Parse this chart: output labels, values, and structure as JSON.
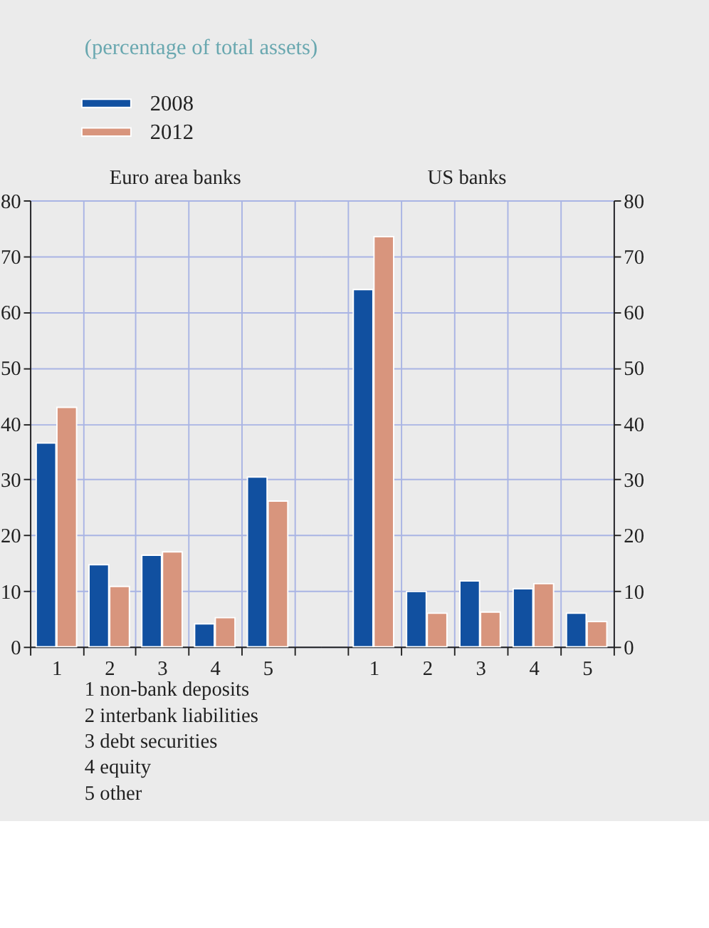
{
  "chart_data": [
    {
      "type": "bar",
      "title": "Euro area banks",
      "subtitle": "(percentage of total assets)",
      "categories": [
        "1",
        "2",
        "3",
        "4",
        "5"
      ],
      "series": [
        {
          "name": "2008",
          "color": "#1150a0",
          "values": [
            36.5,
            14.7,
            16.4,
            4.1,
            30.4
          ]
        },
        {
          "name": "2012",
          "color": "#d8957d",
          "values": [
            42.9,
            10.8,
            17.0,
            5.2,
            26.1
          ]
        }
      ],
      "ylim": [
        0,
        80
      ],
      "yticks": [
        0,
        10,
        20,
        30,
        40,
        50,
        60,
        70,
        80
      ],
      "grid": true,
      "legend": "top left",
      "annotations": [
        "1 non-bank deposits",
        "2 interbank liabilities",
        "3 debt securities",
        "4 equity",
        "5 other"
      ]
    },
    {
      "type": "bar",
      "title": "US banks",
      "categories": [
        "1",
        "2",
        "3",
        "4",
        "5"
      ],
      "series": [
        {
          "name": "2008",
          "color": "#1150a0",
          "values": [
            64.0,
            9.9,
            11.8,
            10.4,
            6.0
          ]
        },
        {
          "name": "2012",
          "color": "#d8957d",
          "values": [
            73.5,
            6.0,
            6.2,
            11.3,
            4.5
          ]
        }
      ],
      "ylim": [
        0,
        80
      ],
      "yticks": [
        0,
        10,
        20,
        30,
        40,
        50,
        60,
        70,
        80
      ],
      "grid": true
    }
  ]
}
